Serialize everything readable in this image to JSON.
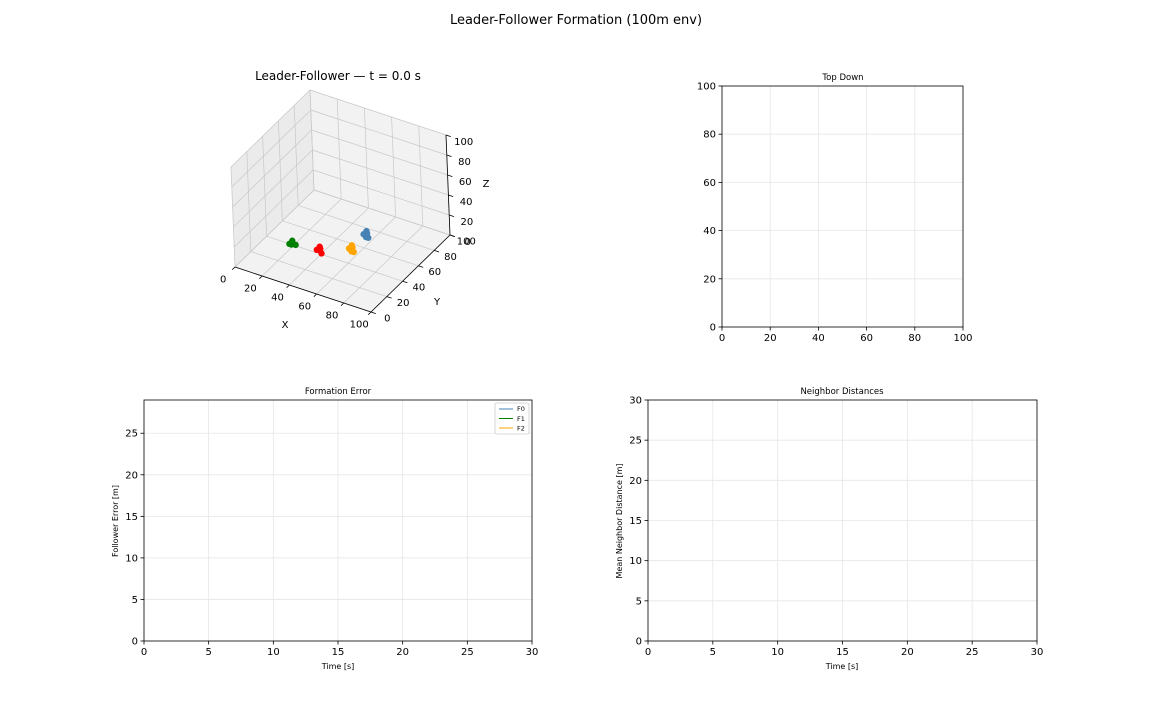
{
  "figure": {
    "title": "Leader-Follower Formation (100m env)"
  },
  "chart_data": [
    {
      "type": "scatter",
      "projection": "3d",
      "title": "Leader-Follower — t = 0.0 s",
      "xlabel": "X",
      "ylabel": "Y",
      "zlabel": "Z",
      "xlim": [
        0,
        100
      ],
      "ylim": [
        0,
        100
      ],
      "zlim": [
        0,
        100
      ],
      "xticks": [
        0,
        20,
        40,
        60,
        80,
        100
      ],
      "yticks": [
        0,
        20,
        40,
        60,
        80,
        100
      ],
      "zticks": [
        0,
        20,
        40,
        60,
        80,
        100
      ],
      "grid": true,
      "groups": [
        {
          "color": "#008000",
          "points": [
            [
              18,
              38,
              2
            ],
            [
              20,
              37,
              3
            ],
            [
              22,
              39,
              2
            ],
            [
              19,
              40,
              4
            ],
            [
              21,
              36,
              5
            ]
          ]
        },
        {
          "color": "#ff0000",
          "points": [
            [
              37,
              40,
              3
            ],
            [
              39,
              41,
              4
            ],
            [
              41,
              39,
              2
            ],
            [
              38,
              42,
              5
            ],
            [
              40,
              38,
              6
            ]
          ]
        },
        {
          "color": "#ffa500",
          "points": [
            [
              58,
              45,
              10
            ],
            [
              60,
              46,
              11
            ],
            [
              62,
              44,
              9
            ],
            [
              59,
              47,
              12
            ],
            [
              61,
              43,
              10
            ]
          ]
        },
        {
          "color": "#4682b4",
          "points": [
            [
              65,
              52,
              22
            ],
            [
              67,
              53,
              23
            ],
            [
              69,
              51,
              21
            ],
            [
              66,
              54,
              24
            ],
            [
              68,
              50,
              22
            ]
          ]
        }
      ]
    },
    {
      "type": "scatter",
      "title": "Top Down",
      "xlim": [
        0,
        100
      ],
      "ylim": [
        0,
        100
      ],
      "xticks": [
        0,
        20,
        40,
        60,
        80,
        100
      ],
      "yticks": [
        0,
        20,
        40,
        60,
        80,
        100
      ],
      "grid": true,
      "series": []
    },
    {
      "type": "line",
      "title": "Formation Error",
      "xlabel": "Time [s]",
      "ylabel": "Follower Error [m]",
      "xlim": [
        0,
        30
      ],
      "ylim": [
        0,
        29
      ],
      "xticks": [
        0,
        5,
        10,
        15,
        20,
        25,
        30
      ],
      "yticks": [
        0,
        5,
        10,
        15,
        20,
        25
      ],
      "grid": true,
      "legend": "top-right",
      "series": [
        {
          "name": "F0",
          "color": "#4682b4",
          "values": []
        },
        {
          "name": "F1",
          "color": "#008000",
          "values": []
        },
        {
          "name": "F2",
          "color": "#ffa500",
          "values": []
        }
      ]
    },
    {
      "type": "line",
      "title": "Neighbor Distances",
      "xlabel": "Time [s]",
      "ylabel": "Mean Neighbor Distance [m]",
      "xlim": [
        0,
        30
      ],
      "ylim": [
        0,
        30
      ],
      "xticks": [
        0,
        5,
        10,
        15,
        20,
        25,
        30
      ],
      "yticks": [
        0,
        5,
        10,
        15,
        20,
        25,
        30
      ],
      "grid": true,
      "series": []
    }
  ]
}
